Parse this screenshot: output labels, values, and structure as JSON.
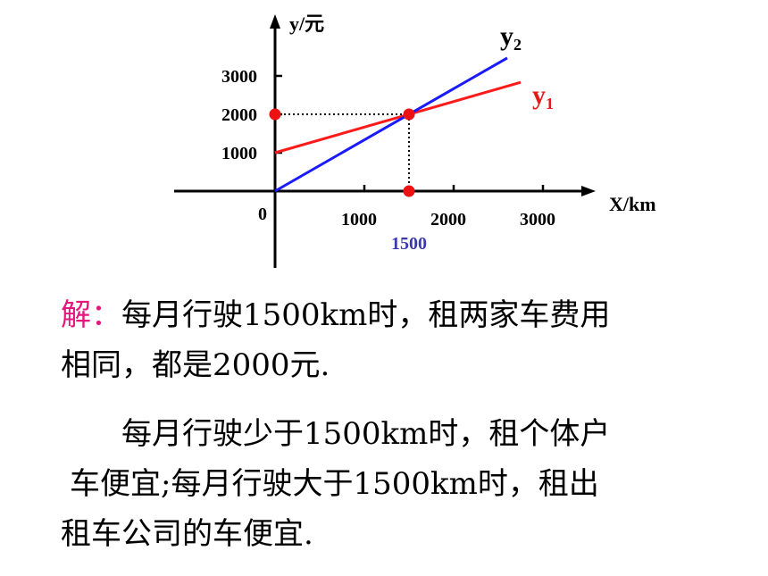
{
  "chart_data": {
    "type": "line",
    "xlabel": "X/km",
    "ylabel": "y/元",
    "origin_label": "0",
    "x_ticks": [
      1000,
      2000,
      3000
    ],
    "y_ticks": [
      1000,
      2000,
      3000
    ],
    "xlim": [
      0,
      3500
    ],
    "ylim": [
      0,
      3800
    ],
    "series": [
      {
        "name": "y",
        "subscript": "1",
        "color": "#ff1a1a",
        "x": [
          0,
          2750
        ],
        "y": [
          1000,
          2833
        ]
      },
      {
        "name": "y",
        "subscript": "2",
        "color": "#1a1aff",
        "x": [
          0,
          2600
        ],
        "y": [
          0,
          3467
        ]
      }
    ],
    "intersection": {
      "x": 1500,
      "y": 2000,
      "color": "#ee1111"
    },
    "annotation": {
      "text": "1500",
      "x": 1500
    }
  },
  "text": {
    "p1_lead": "解：",
    "p1_line1": "每月行驶1500km时，租两家车费用",
    "p1_line2": "相同，都是2000元.",
    "p2_line1": "每月行驶少于1500km时，租个体户",
    "p2_line2": "车便宜;每月行驶大于1500km时，租出",
    "p2_line3": "租车公司的车便宜."
  }
}
